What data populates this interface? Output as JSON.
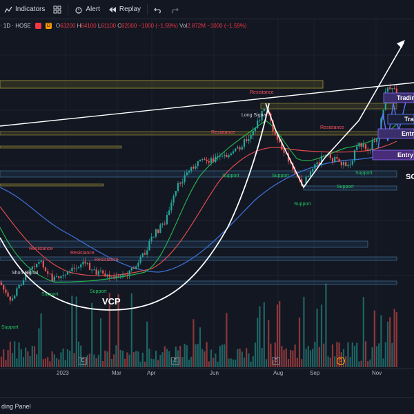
{
  "toolbar": {
    "indicators": "Indicators",
    "alert": "Alert",
    "replay": "Replay"
  },
  "legend": {
    "symbol": "· 1D · HOSE",
    "badge": "D",
    "open_k": "O",
    "open_v": "63200",
    "high_k": "H",
    "high_v": "64100",
    "low_k": "L",
    "low_v": "61100",
    "close_k": "C",
    "close_v": "62000",
    "change": "−1000 (−1.59%)",
    "vol_k": "Vol",
    "vol_v": "2.872M",
    "vol_change": "−1000 (−1.59%)"
  },
  "annotations": {
    "resistance": "Resistance",
    "support": "Support",
    "short_signal": "Short Signal",
    "long_signal": "Long Signal",
    "vcp": "VCP",
    "so": "SO"
  },
  "boxes": {
    "trading": "Tradin",
    "trad": "Trad",
    "entry": "Entr",
    "entry2": "Entry"
  },
  "xaxis": {
    "labels": [
      "2023",
      "Mar",
      "Apr",
      "Jun",
      "Aug",
      "Sep",
      "Nov"
    ],
    "earnings_marker": "E",
    "dividend_marker": "S"
  },
  "bottom": {
    "panel": "ding Panel"
  },
  "colors": {
    "up": "#26a69a",
    "down": "#ef5350",
    "background": "#131722",
    "resistance": "#f7525f",
    "support": "#22c55e"
  },
  "chart_data": {
    "type": "candlestick",
    "symbol_exchange": "HOSE",
    "timeframe": "1D",
    "last_bar": {
      "open": 63200,
      "high": 64100,
      "low": 61100,
      "close": 62000,
      "change": -1000,
      "change_pct": -1.59,
      "volume": "2.872M"
    },
    "x_tick_labels": [
      "2023",
      "Mar",
      "Apr",
      "Jun",
      "Aug",
      "Sep",
      "Nov"
    ],
    "patterns": [
      "VCP"
    ]
  }
}
